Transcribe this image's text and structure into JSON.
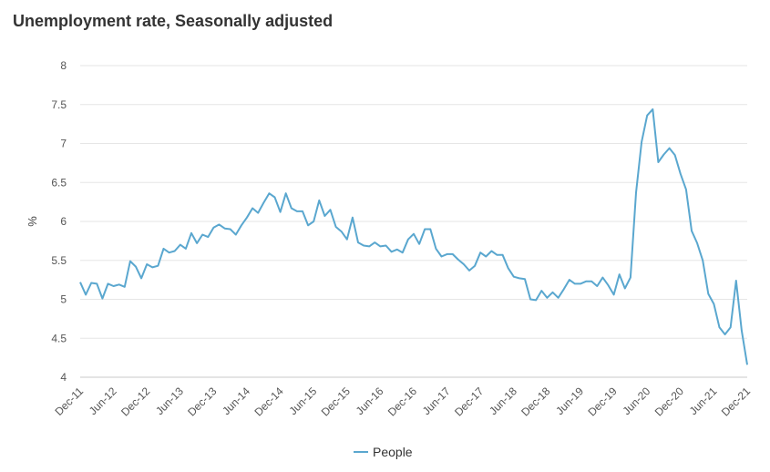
{
  "chart_data": {
    "type": "line",
    "title": "Unemployment rate, Seasonally adjusted",
    "xlabel": "",
    "ylabel": "%",
    "ylim": [
      4,
      8
    ],
    "yticks": [
      "4",
      "4.5",
      "5",
      "5.5",
      "6",
      "6.5",
      "7",
      "7.5",
      "8"
    ],
    "xticks": [
      "Dec-11",
      "Jun-12",
      "Dec-12",
      "Jun-13",
      "Dec-13",
      "Jun-14",
      "Dec-14",
      "Jun-15",
      "Dec-15",
      "Jun-16",
      "Dec-16",
      "Jun-17",
      "Dec-17",
      "Jun-18",
      "Dec-18",
      "Jun-19",
      "Dec-19",
      "Jun-20",
      "Dec-20",
      "Jun-21",
      "Dec-21"
    ],
    "x_start": "Dec-11",
    "x_end": "Dec-21",
    "grid": true,
    "legend_position": "bottom",
    "series": [
      {
        "name": "People",
        "color": "#5aa7cf",
        "values": [
          5.22,
          5.06,
          5.21,
          5.2,
          5.01,
          5.2,
          5.17,
          5.19,
          5.16,
          5.49,
          5.42,
          5.27,
          5.45,
          5.41,
          5.43,
          5.65,
          5.6,
          5.62,
          5.7,
          5.65,
          5.85,
          5.72,
          5.83,
          5.8,
          5.92,
          5.96,
          5.91,
          5.9,
          5.83,
          5.95,
          6.05,
          6.17,
          6.11,
          6.24,
          6.36,
          6.31,
          6.12,
          6.36,
          6.17,
          6.13,
          6.13,
          5.95,
          6.0,
          6.27,
          6.07,
          6.15,
          5.93,
          5.87,
          5.77,
          6.05,
          5.73,
          5.69,
          5.68,
          5.73,
          5.68,
          5.69,
          5.61,
          5.64,
          5.6,
          5.77,
          5.84,
          5.71,
          5.9,
          5.9,
          5.65,
          5.55,
          5.58,
          5.58,
          5.51,
          5.45,
          5.37,
          5.43,
          5.6,
          5.55,
          5.62,
          5.57,
          5.57,
          5.4,
          5.29,
          5.27,
          5.26,
          5.0,
          4.99,
          5.11,
          5.02,
          5.09,
          5.02,
          5.13,
          5.25,
          5.2,
          5.2,
          5.23,
          5.23,
          5.17,
          5.28,
          5.18,
          5.06,
          5.32,
          5.14,
          5.28,
          6.37,
          7.02,
          7.36,
          7.44,
          6.76,
          6.86,
          6.94,
          6.85,
          6.61,
          6.41,
          5.88,
          5.72,
          5.5,
          5.07,
          4.94,
          4.64,
          4.55,
          4.64,
          5.24,
          4.6,
          4.16
        ]
      }
    ]
  }
}
